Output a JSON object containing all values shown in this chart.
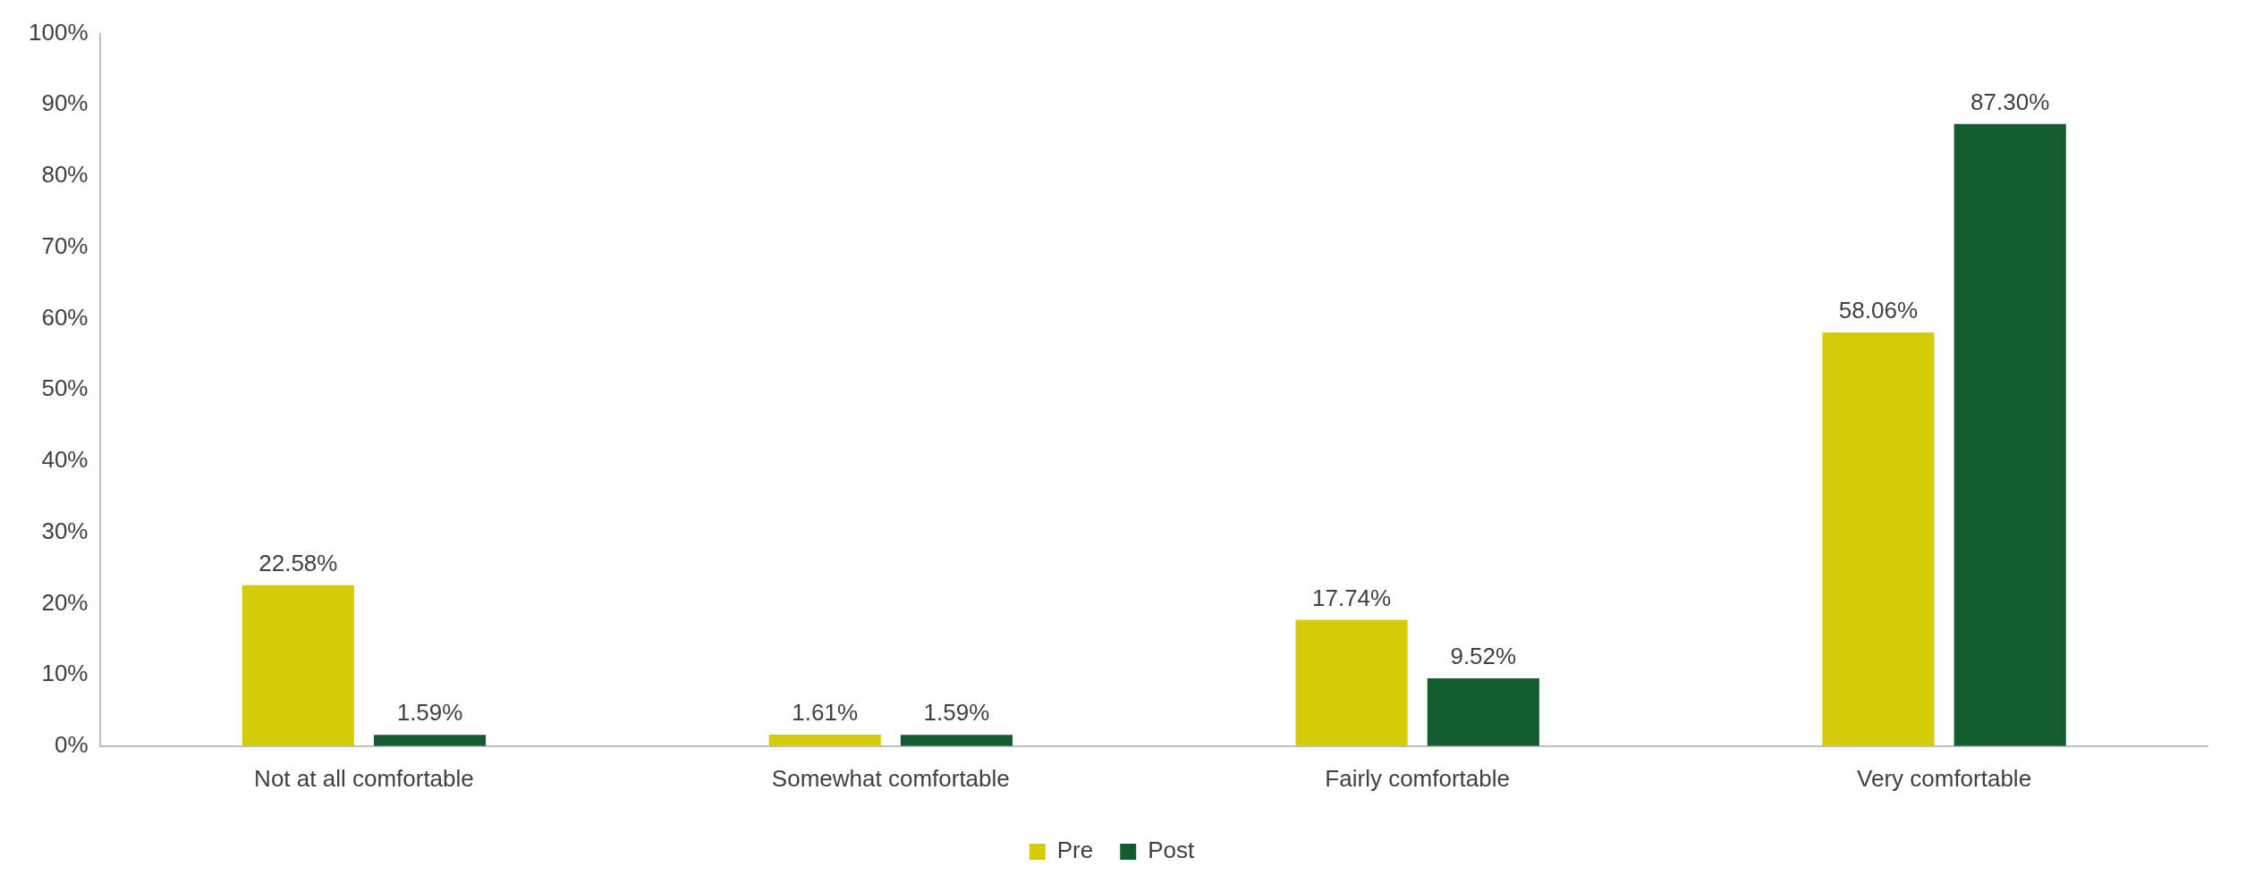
{
  "chart_data": {
    "type": "bar",
    "categories": [
      "Not at all comfortable",
      "Somewhat comfortable",
      "Fairly comfortable",
      "Very comfortable"
    ],
    "series": [
      {
        "name": "Pre",
        "color": "#d4cc08",
        "values": [
          22.58,
          1.61,
          17.74,
          58.06
        ],
        "value_labels": [
          "22.58%",
          "1.61%",
          "17.74%",
          "58.06%"
        ]
      },
      {
        "name": "Post",
        "color": "#135c2f",
        "values": [
          1.59,
          1.59,
          9.52,
          87.3
        ],
        "value_labels": [
          "1.59%",
          "1.59%",
          "9.52%",
          "87.30%"
        ]
      }
    ],
    "ylim": [
      0,
      100
    ],
    "yticks": [
      {
        "value": 0,
        "label": "0%"
      },
      {
        "value": 10,
        "label": "10%"
      },
      {
        "value": 20,
        "label": "20%"
      },
      {
        "value": 30,
        "label": "30%"
      },
      {
        "value": 40,
        "label": "40%"
      },
      {
        "value": 50,
        "label": "50%"
      },
      {
        "value": 60,
        "label": "60%"
      },
      {
        "value": 70,
        "label": "70%"
      },
      {
        "value": 80,
        "label": "80%"
      },
      {
        "value": 90,
        "label": "90%"
      },
      {
        "value": 100,
        "label": "100%"
      }
    ],
    "grid": false,
    "legend": "bottom"
  }
}
